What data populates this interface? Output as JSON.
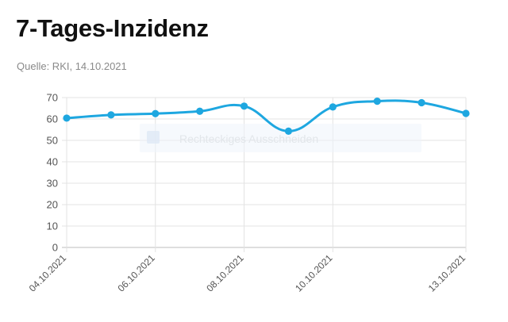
{
  "title": "7-Tages-Inzidenz",
  "subtitle": "Quelle: RKI, 14.10.2021",
  "overlay_label": "Rechteckiges Ausschneiden",
  "colors": {
    "series": "#1ea7e0",
    "grid": "#e3e3e3",
    "axis": "#bdbdbd"
  },
  "chart_data": {
    "type": "line",
    "x": [
      "04.10.2021",
      "05.10.2021",
      "06.10.2021",
      "07.10.2021",
      "08.10.2021",
      "09.10.2021",
      "10.10.2021",
      "11.10.2021",
      "12.10.2021",
      "13.10.2021"
    ],
    "x_tick_labels": [
      "04.10.2021",
      "06.10.2021",
      "08.10.2021",
      "10.10.2021",
      "13.10.2021"
    ],
    "series": [
      {
        "values": [
          60.4,
          61.9,
          62.5,
          63.6,
          66.0,
          54.3,
          65.6,
          68.3,
          67.6,
          62.6
        ]
      }
    ],
    "ylim": [
      0,
      70
    ],
    "yticks": [
      0,
      10,
      20,
      30,
      40,
      50,
      60,
      70
    ],
    "grid": true,
    "xlabel": "",
    "ylabel": "",
    "smooth": true,
    "markers": true
  }
}
